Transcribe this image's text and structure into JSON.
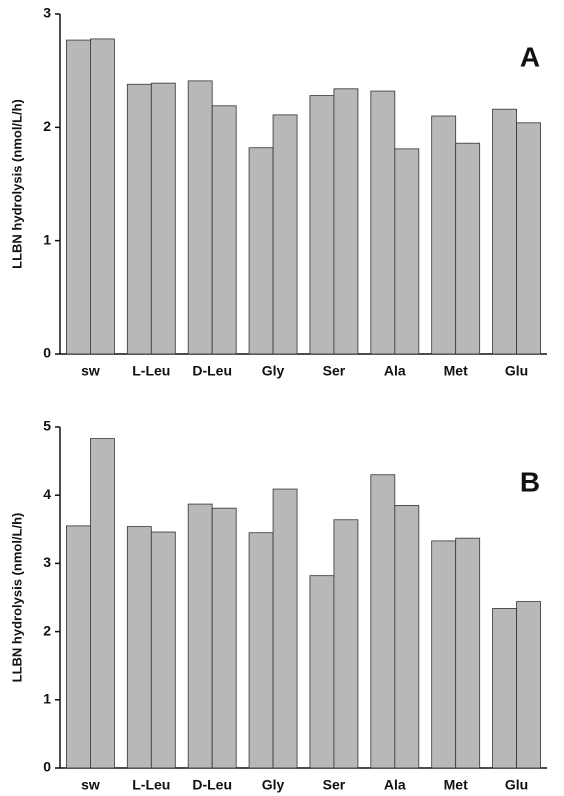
{
  "chart_data": [
    {
      "type": "bar",
      "panel_label": "A",
      "y_label": "LLBN hydrolysis (nmol/L/h)",
      "categories": [
        "sw",
        "L-Leu",
        "D-Leu",
        "Gly",
        "Ser",
        "Ala",
        "Met",
        "Glu"
      ],
      "series": [
        {
          "color": "#b8b8b8",
          "values": [
            2.77,
            2.38,
            2.41,
            1.82,
            2.28,
            2.32,
            2.1,
            2.16
          ]
        },
        {
          "color": "#b8b8b8",
          "values": [
            2.78,
            2.39,
            2.19,
            2.11,
            2.34,
            1.81,
            1.86,
            2.04
          ]
        }
      ],
      "ylim": [
        0,
        3
      ],
      "yticks": [
        0,
        1,
        2,
        3
      ]
    },
    {
      "type": "bar",
      "panel_label": "B",
      "y_label": "LLBN hydrolysis (nmol/L/h)",
      "categories": [
        "sw",
        "L-Leu",
        "D-Leu",
        "Gly",
        "Ser",
        "Ala",
        "Met",
        "Glu"
      ],
      "series": [
        {
          "color": "#b8b8b8",
          "values": [
            3.55,
            3.54,
            3.87,
            3.45,
            2.82,
            4.3,
            3.33,
            2.34
          ]
        },
        {
          "color": "#b8b8b8",
          "values": [
            4.83,
            3.46,
            3.81,
            4.09,
            3.64,
            3.85,
            3.37,
            2.44
          ]
        }
      ],
      "ylim": [
        0,
        5
      ],
      "yticks": [
        0,
        1,
        2,
        3,
        4,
        5
      ]
    }
  ]
}
